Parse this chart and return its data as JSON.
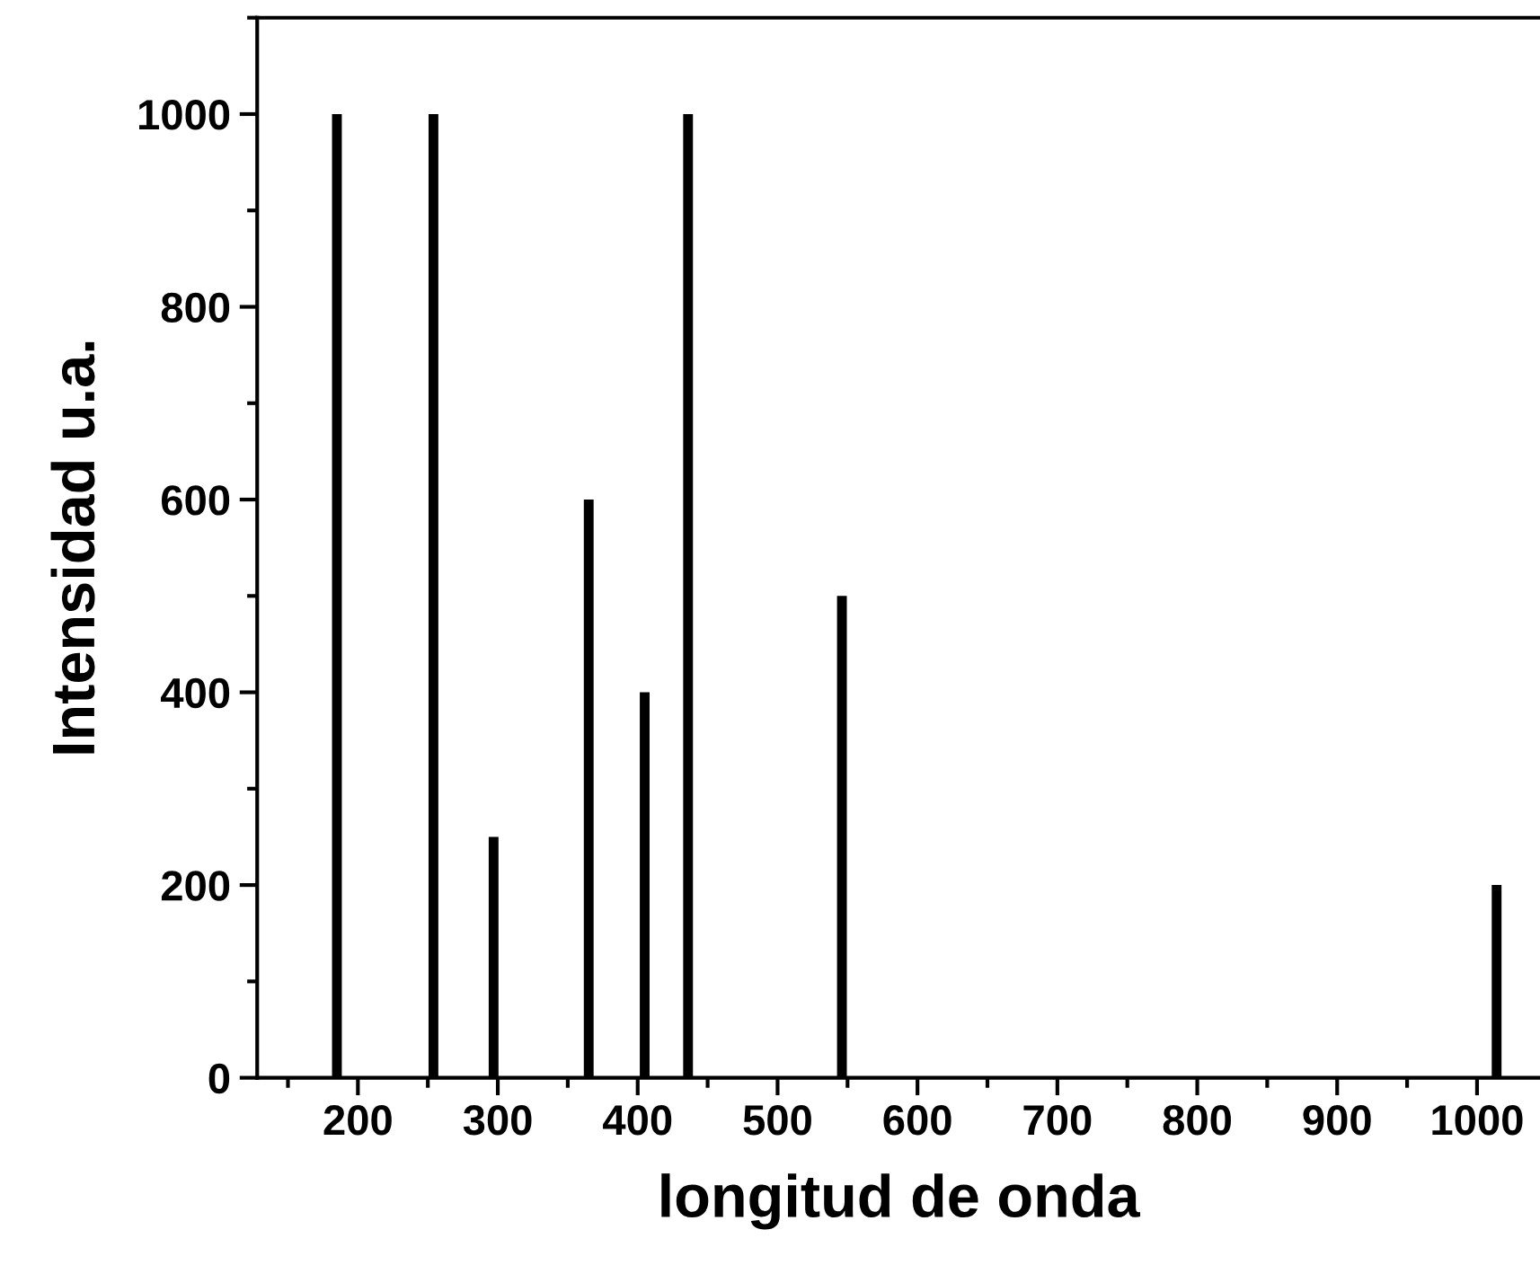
{
  "chart_data": {
    "type": "bar",
    "xlabel": "longitud de onda",
    "ylabel": "Intensidad u.a.",
    "x": [
      185,
      254,
      297,
      365,
      405,
      436,
      546,
      1014
    ],
    "values": [
      1000,
      1000,
      250,
      600,
      400,
      1000,
      500,
      200
    ],
    "color": "#000000",
    "xlim": [
      128,
      1045
    ],
    "xticks": [
      200,
      300,
      400,
      500,
      600,
      700,
      800,
      900,
      1000
    ],
    "ylim": [
      0,
      1100
    ],
    "yticks": [
      0,
      200,
      400,
      600,
      800,
      1000
    ],
    "grid": false,
    "legend": false
  }
}
